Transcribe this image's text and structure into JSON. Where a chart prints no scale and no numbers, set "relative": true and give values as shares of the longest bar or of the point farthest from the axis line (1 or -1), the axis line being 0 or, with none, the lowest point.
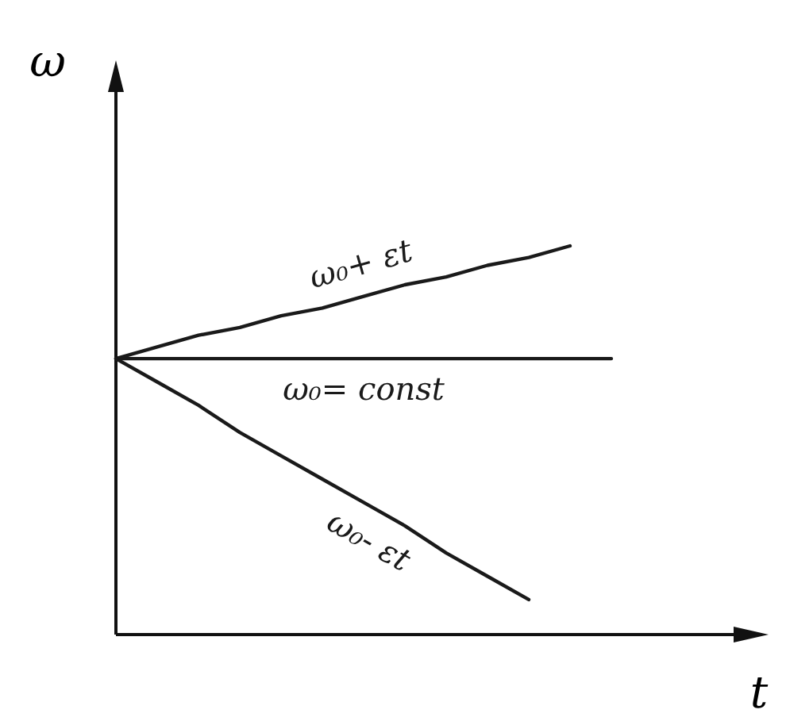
{
  "chart_data": {
    "type": "line",
    "relative": true,
    "xlabel": "t",
    "ylabel": "ω",
    "categories": [
      null,
      null,
      null,
      null,
      null,
      null,
      null,
      null,
      null,
      null,
      null,
      null,
      null
    ],
    "marker": "none",
    "line_style": "solid",
    "series": [
      {
        "name": "ω₀+ εt",
        "color": "#1a1a1a",
        "values": [
          0.71,
          0.74,
          0.77,
          0.79,
          0.82,
          0.84,
          0.87,
          0.9,
          0.92,
          0.95,
          0.97,
          1.0,
          null
        ]
      },
      {
        "name": "ω₀= const",
        "color": "#1a1a1a",
        "values": [
          0.71,
          0.71,
          0.71,
          0.71,
          0.71,
          0.71,
          0.71,
          0.71,
          0.71,
          0.71,
          0.71,
          0.71,
          0.71
        ]
      },
      {
        "name": "ω₀- εt",
        "color": "#1a1a1a",
        "values": [
          0.71,
          0.65,
          0.59,
          0.52,
          0.46,
          0.4,
          0.34,
          0.28,
          0.21,
          0.15,
          0.09,
          null,
          null
        ]
      }
    ]
  }
}
